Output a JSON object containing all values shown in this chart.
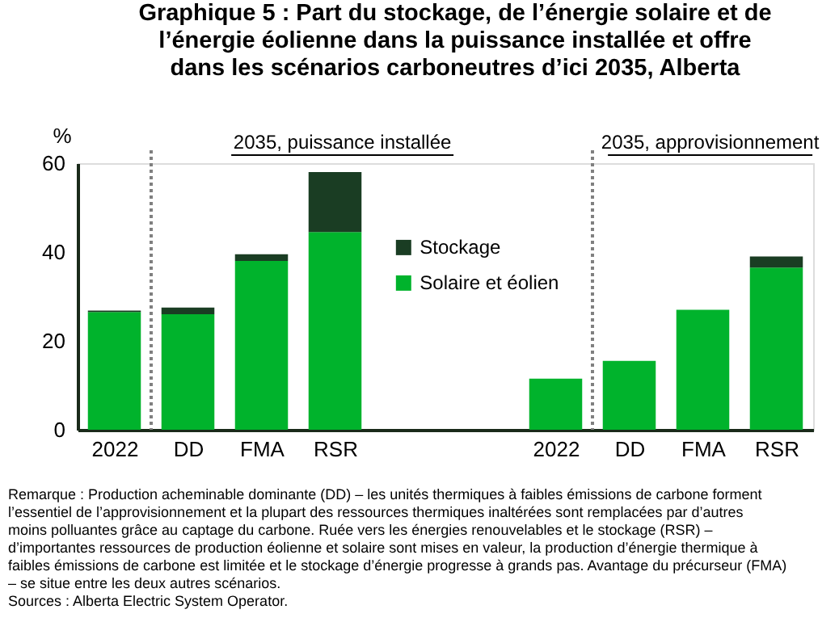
{
  "chart_data": {
    "type": "bar",
    "stacked": true,
    "title": "Graphique 5 : Part du stockage, de l’énergie solaire et de l’énergie éolienne dans la puissance installée et offre dans les scénarios carboneutres d’ici 2035, Alberta",
    "ylabel": "%",
    "categories": [
      "2022",
      "DD",
      "FMA",
      "RSR",
      null,
      null,
      "2022",
      "DD",
      "FMA",
      "RSR"
    ],
    "series": [
      {
        "name": "Solaire et éolien",
        "color": "#00b32c",
        "values": [
          26.5,
          26,
          38,
          44.5,
          null,
          null,
          11.5,
          15.5,
          27,
          36.5
        ]
      },
      {
        "name": "Stockage",
        "color": "#1a3d23",
        "values": [
          0.3,
          1.5,
          1.5,
          13.5,
          null,
          null,
          0,
          0,
          0,
          2.5
        ]
      }
    ],
    "ylim": [
      0,
      60
    ],
    "yticks": [
      0,
      20,
      40,
      60
    ],
    "grid": false,
    "legend": "center",
    "annotations": [
      "2035, puissance installée",
      "2035, approvisionnement",
      "Remarque : Production acheminable dominante (DD) – les unités thermiques à faibles émissions de carbone forment l’essentiel de l’approvisionnement et la plupart des ressources thermiques inaltérées sont remplacées par d’autres moins polluantes grâce au captage du carbone. Ruée vers les énergies renouvelables et le stockage (RSR) – d’importantes ressources de production éolienne et solaire sont mises en valeur, la production d’énergie thermique à faibles émissions de carbone est limitée et le stockage d’énergie progresse à grands pas. Avantage du précurseur (FMA) – se situe entre les deux autres scénarios.",
      "Sources : Alberta Electric System Operator."
    ]
  }
}
